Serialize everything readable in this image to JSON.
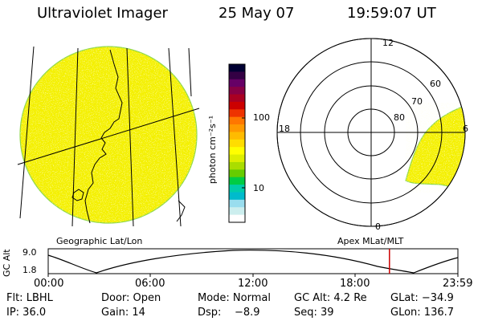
{
  "header": {
    "instrument": "Ultraviolet Imager",
    "date": "25 May 07",
    "time": "19:59:07 UT"
  },
  "geo_panel": {
    "label": "Geographic Lat/Lon"
  },
  "colorbar": {
    "unit_label": "photon cm⁻²s⁻¹",
    "ticks": [
      "100",
      "10"
    ],
    "colors": [
      "#000033",
      "#330044",
      "#660066",
      "#880044",
      "#aa0022",
      "#cc0000",
      "#ee3300",
      "#ff7700",
      "#ff9900",
      "#ffbb00",
      "#ffdd00",
      "#ffff00",
      "#ddee00",
      "#aadd00",
      "#66cc00",
      "#00cc44",
      "#00ccaa",
      "#00bbcc",
      "#99ddee",
      "#cceeee",
      "#ffffff"
    ]
  },
  "polar_panel": {
    "label": "Apex MLat/MLT",
    "mlt_labels": {
      "top": "12",
      "left": "18",
      "right": "6",
      "bottom": "0"
    },
    "lat_labels": [
      "80",
      "70",
      "60"
    ]
  },
  "altitude_plot": {
    "ylabel": "GC Alt",
    "yticks": [
      "9.0",
      "1.8"
    ],
    "xticks": [
      "00:00",
      "06:00",
      "12:00",
      "18:00",
      "23:59"
    ],
    "current_time_fraction": 0.833
  },
  "footer": {
    "row1": {
      "flt": "Flt: LBHL",
      "door": "Door: Open",
      "mode": "Mode: Normal",
      "gcalt": "GC Alt: 4.2 Re",
      "glat": "GLat: −34.9"
    },
    "row2": {
      "ip": "IP: 36.0",
      "gain": "Gain: 14",
      "dsp": "Dsp:    −8.9",
      "seq": "Seq: 39",
      "glon": "GLon: 136.7"
    }
  },
  "colors": {
    "image_fill": "#f4f000",
    "image_edge": "#8fd84a",
    "alt_marker": "#cc0000"
  }
}
